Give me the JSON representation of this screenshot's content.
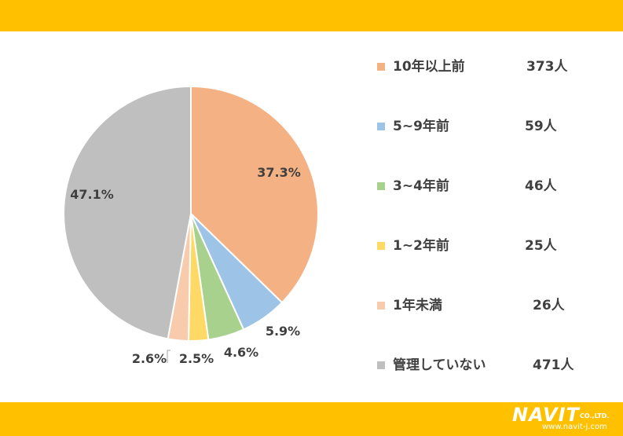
{
  "chart_data": {
    "type": "pie",
    "slices": [
      {
        "label": "10年以上前",
        "count": "373人",
        "percent": 37.3,
        "display": "37.3%",
        "color": "#F4B183"
      },
      {
        "label": "5~9年前",
        "count": "59人",
        "percent": 5.9,
        "display": "5.9%",
        "color": "#9DC3E6"
      },
      {
        "label": "3~4年前",
        "count": "46人",
        "percent": 4.6,
        "display": "4.6%",
        "color": "#A9D18E"
      },
      {
        "label": "1~2年前",
        "count": "25人",
        "percent": 2.5,
        "display": "2.5%",
        "color": "#FFD966"
      },
      {
        "label": "1年未満",
        "count": "26人",
        "percent": 2.6,
        "display": "2.6%",
        "color": "#F8CBAD"
      },
      {
        "label": "管理していない",
        "count": "471人",
        "percent": 47.1,
        "display": "47.1%",
        "color": "#BFBFBF"
      }
    ],
    "legend_position": "right",
    "start_angle": "12 o'clock",
    "direction": "clockwise"
  },
  "brand": {
    "name": "NAVIT",
    "suffix": "CO.,LTD.",
    "url": "www.navit-j.com",
    "band_color": "#FFC000"
  }
}
